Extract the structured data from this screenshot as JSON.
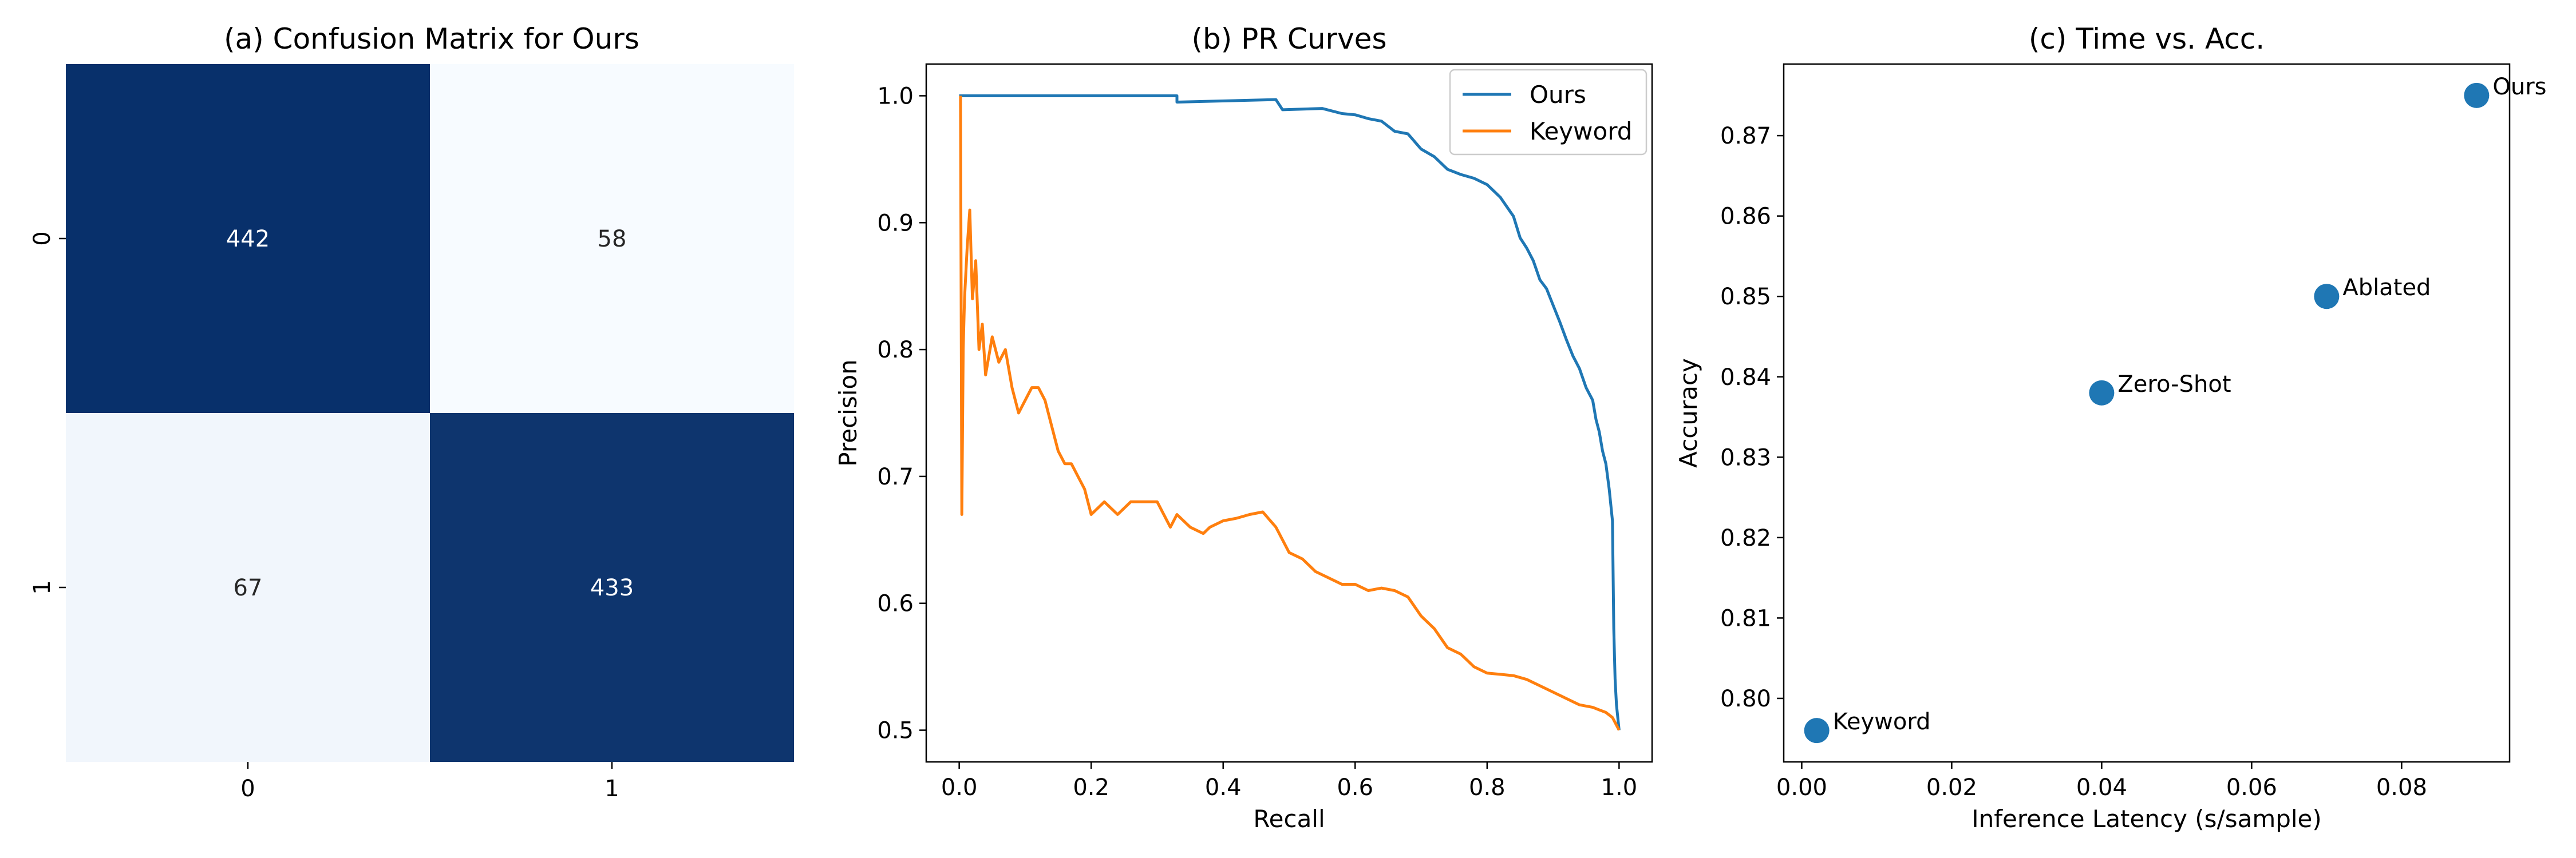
{
  "chart_data": [
    {
      "type": "heatmap",
      "title": "(a) Confusion Matrix for Ours",
      "xlabel": "",
      "ylabel": "",
      "x_categories": [
        "0",
        "1"
      ],
      "y_categories": [
        "0",
        "1"
      ],
      "values": [
        [
          442,
          58
        ],
        [
          67,
          433
        ]
      ],
      "colormap": "Blues",
      "color_range": [
        58,
        442
      ],
      "colors": {
        "high": "#08306b",
        "low": "#f7fbff",
        "text_dark": "#ffffff",
        "text_light": "#262626"
      }
    },
    {
      "type": "line",
      "title": "(b) PR Curves",
      "xlabel": "Recall",
      "ylabel": "Precision",
      "xlim": [
        -0.05,
        1.05
      ],
      "ylim": [
        0.475,
        1.025
      ],
      "xticks": [
        "0.0",
        "0.2",
        "0.4",
        "0.6",
        "0.8",
        "1.0"
      ],
      "yticks": [
        "0.5",
        "0.6",
        "0.7",
        "0.8",
        "0.9",
        "1.0"
      ],
      "legend": "top-right",
      "series": [
        {
          "name": "Ours",
          "color": "#1f77b4",
          "x": [
            0.0,
            0.005,
            0.33,
            0.33,
            0.48,
            0.49,
            0.55,
            0.58,
            0.6,
            0.62,
            0.64,
            0.66,
            0.68,
            0.7,
            0.72,
            0.74,
            0.76,
            0.78,
            0.8,
            0.82,
            0.84,
            0.85,
            0.86,
            0.87,
            0.88,
            0.89,
            0.9,
            0.91,
            0.92,
            0.93,
            0.94,
            0.95,
            0.96,
            0.965,
            0.97,
            0.975,
            0.98,
            0.985,
            0.99,
            0.992,
            0.994,
            0.996,
            0.998,
            1.0
          ],
          "y": [
            1.0,
            1.0,
            1.0,
            0.995,
            0.997,
            0.989,
            0.99,
            0.986,
            0.985,
            0.982,
            0.98,
            0.972,
            0.97,
            0.958,
            0.952,
            0.942,
            0.938,
            0.935,
            0.93,
            0.92,
            0.905,
            0.888,
            0.88,
            0.87,
            0.855,
            0.848,
            0.835,
            0.822,
            0.808,
            0.795,
            0.785,
            0.77,
            0.76,
            0.745,
            0.735,
            0.72,
            0.71,
            0.69,
            0.665,
            0.58,
            0.54,
            0.52,
            0.51,
            0.5
          ]
        },
        {
          "name": "Keyword",
          "color": "#ff7f0e",
          "x": [
            0.002,
            0.004,
            0.006,
            0.008,
            0.012,
            0.016,
            0.02,
            0.025,
            0.03,
            0.035,
            0.04,
            0.05,
            0.06,
            0.07,
            0.08,
            0.09,
            0.1,
            0.11,
            0.12,
            0.13,
            0.14,
            0.15,
            0.16,
            0.17,
            0.18,
            0.19,
            0.2,
            0.22,
            0.24,
            0.26,
            0.28,
            0.3,
            0.32,
            0.33,
            0.35,
            0.37,
            0.38,
            0.4,
            0.42,
            0.44,
            0.46,
            0.48,
            0.5,
            0.52,
            0.54,
            0.56,
            0.58,
            0.6,
            0.62,
            0.64,
            0.66,
            0.68,
            0.7,
            0.72,
            0.74,
            0.76,
            0.78,
            0.8,
            0.82,
            0.84,
            0.86,
            0.88,
            0.9,
            0.92,
            0.94,
            0.96,
            0.98,
            0.99,
            1.0
          ],
          "y": [
            1.0,
            0.67,
            0.8,
            0.84,
            0.88,
            0.91,
            0.84,
            0.87,
            0.8,
            0.82,
            0.78,
            0.81,
            0.79,
            0.8,
            0.77,
            0.75,
            0.76,
            0.77,
            0.77,
            0.76,
            0.74,
            0.72,
            0.71,
            0.71,
            0.7,
            0.69,
            0.67,
            0.68,
            0.67,
            0.68,
            0.68,
            0.68,
            0.66,
            0.67,
            0.66,
            0.655,
            0.66,
            0.665,
            0.667,
            0.67,
            0.672,
            0.66,
            0.64,
            0.635,
            0.625,
            0.62,
            0.615,
            0.615,
            0.61,
            0.612,
            0.61,
            0.605,
            0.59,
            0.58,
            0.565,
            0.56,
            0.55,
            0.545,
            0.544,
            0.543,
            0.54,
            0.535,
            0.53,
            0.525,
            0.52,
            0.518,
            0.514,
            0.51,
            0.5
          ]
        }
      ]
    },
    {
      "type": "scatter",
      "title": "(c) Time vs. Acc.",
      "xlabel": "Inference Latency (s/sample)",
      "ylabel": "Accuracy",
      "xlim": [
        -0.0024,
        0.0944
      ],
      "ylim": [
        0.7921,
        0.8789
      ],
      "xticks": [
        0.0,
        0.02,
        0.04,
        0.06,
        0.08
      ],
      "xtick_labels": [
        "0.00",
        "0.02",
        "0.04",
        "0.06",
        "0.08"
      ],
      "yticks": [
        0.8,
        0.81,
        0.82,
        0.83,
        0.84,
        0.85,
        0.86,
        0.87
      ],
      "ytick_labels": [
        "0.80",
        "0.81",
        "0.82",
        "0.83",
        "0.84",
        "0.85",
        "0.86",
        "0.87"
      ],
      "color": "#1f77b4",
      "points": [
        {
          "label": "Ours",
          "x": 0.09,
          "y": 0.875
        },
        {
          "label": "Ablated",
          "x": 0.07,
          "y": 0.85
        },
        {
          "label": "Zero-Shot",
          "x": 0.04,
          "y": 0.838
        },
        {
          "label": "Keyword",
          "x": 0.002,
          "y": 0.796
        }
      ]
    }
  ]
}
